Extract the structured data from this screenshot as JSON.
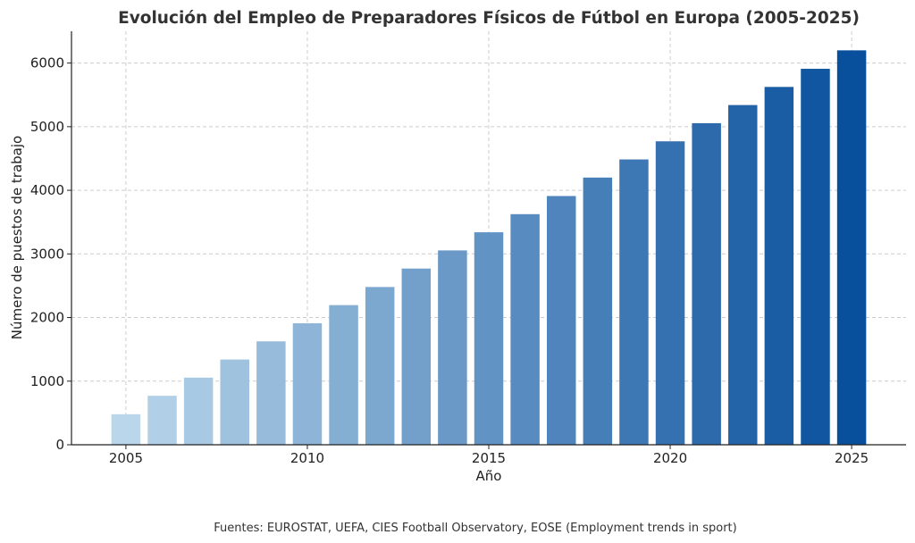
{
  "chart_data": {
    "type": "bar",
    "title": "Evolución del Empleo de Preparadores Físicos de Fútbol en Europa (2005-2025)",
    "xlabel": "Año",
    "ylabel": "Número de puestos de trabajo",
    "categories": [
      2005,
      2006,
      2007,
      2008,
      2009,
      2010,
      2011,
      2012,
      2013,
      2014,
      2015,
      2016,
      2017,
      2018,
      2019,
      2020,
      2021,
      2022,
      2023,
      2024,
      2025
    ],
    "values": [
      480,
      770,
      1055,
      1340,
      1625,
      1910,
      2195,
      2480,
      2770,
      3055,
      3340,
      3625,
      3910,
      4200,
      4485,
      4770,
      5055,
      5340,
      5625,
      5910,
      6200
    ],
    "xlim": [
      2003.5,
      2026.5
    ],
    "ylim": [
      0,
      6500
    ],
    "x_ticks": [
      2005,
      2010,
      2015,
      2020,
      2025
    ],
    "y_ticks": [
      0,
      1000,
      2000,
      3000,
      4000,
      5000,
      6000
    ],
    "grid": true,
    "colors": {
      "start": "#bad6eb",
      "end": "#084f9c",
      "text": "#222222",
      "title": "#333333"
    },
    "source": "Fuentes: EUROSTAT, UEFA, CIES Football Observatory, EOSE (Employment trends in sport)"
  }
}
